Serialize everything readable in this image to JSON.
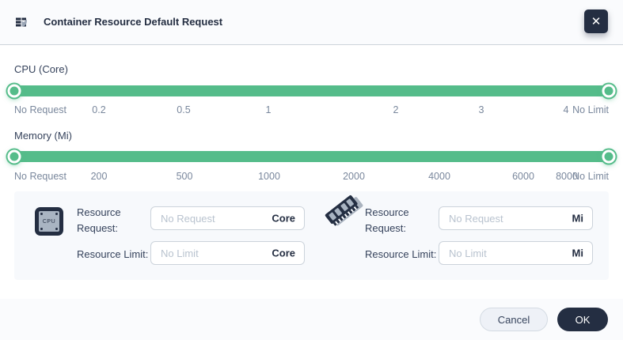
{
  "dialog": {
    "title": "Container Resource Default Request",
    "close_glyph": "✕"
  },
  "cpu_slider": {
    "label": "CPU (Core)",
    "ticks": [
      "No Request",
      "0.2",
      "0.5",
      "1",
      "2",
      "3",
      "4",
      "No Limit"
    ]
  },
  "memory_slider": {
    "label": "Memory (Mi)",
    "ticks": [
      "No Request",
      "200",
      "500",
      "1000",
      "2000",
      "4000",
      "6000",
      "8000",
      "No Limit"
    ]
  },
  "form": {
    "cpu": {
      "icon_text": "CPU",
      "request_label": "Resource Request:",
      "request_placeholder": "No Request",
      "limit_label": "Resource Limit:",
      "limit_placeholder": "No Limit",
      "unit": "Core"
    },
    "memory": {
      "request_label": "Resource Request:",
      "request_placeholder": "No Request",
      "limit_label": "Resource Limit:",
      "limit_placeholder": "No Limit",
      "unit": "Mi"
    }
  },
  "footer": {
    "cancel_label": "Cancel",
    "ok_label": "OK"
  },
  "colors": {
    "accent_green": "#55bc8a",
    "dark_navy": "#242e42",
    "tick_gray": "#79879c"
  }
}
